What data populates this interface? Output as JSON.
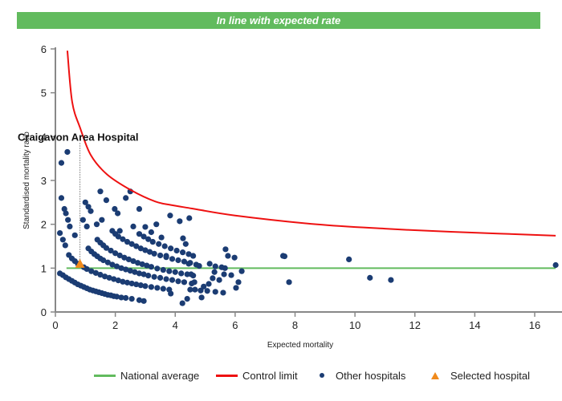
{
  "banner": {
    "text": "In line with expected rate",
    "color": "#62bb5e"
  },
  "chart_data": {
    "type": "scatter",
    "title": "In line with expected rate",
    "xlabel": "Expected mortality",
    "ylabel": "Standardised mortality ratio",
    "xlim": [
      0,
      17
    ],
    "ylim": [
      0,
      6
    ],
    "xticks": [
      0,
      2,
      4,
      6,
      8,
      10,
      12,
      14,
      16
    ],
    "yticks": [
      0,
      1,
      2,
      3,
      4,
      5,
      6
    ],
    "grid": false,
    "legend_position": "bottom",
    "colors": {
      "national_average": "#62bb5e",
      "control_limit": "#ee1111",
      "other_hospitals": "#1b3c73",
      "selected_hospital": "#f08a1c"
    },
    "national_average": {
      "name": "National average",
      "y": 1,
      "x_range": [
        0.37,
        16.7
      ]
    },
    "control_limit": {
      "name": "Control limit",
      "points": [
        [
          0.4,
          5.96
        ],
        [
          0.56,
          4.79
        ],
        [
          0.83,
          4.19
        ],
        [
          1.18,
          3.58
        ],
        [
          1.72,
          3.14
        ],
        [
          2.52,
          2.78
        ],
        [
          3.33,
          2.52
        ],
        [
          3.86,
          2.44
        ],
        [
          4.56,
          2.36
        ],
        [
          6.0,
          2.2
        ],
        [
          8.7,
          2.0
        ],
        [
          11.0,
          1.9
        ],
        [
          13.2,
          1.83
        ],
        [
          16.7,
          1.74
        ]
      ]
    },
    "selected_hospital": {
      "name": "Selected hospital",
      "label": "Craigavon Area Hospital",
      "x": 0.82,
      "y": 1.1
    },
    "other_hospitals": {
      "name": "Other hospitals",
      "points": [
        [
          0.2,
          3.4
        ],
        [
          0.4,
          3.65
        ],
        [
          0.2,
          2.6
        ],
        [
          0.3,
          2.35
        ],
        [
          0.35,
          2.25
        ],
        [
          0.42,
          2.1
        ],
        [
          0.48,
          1.95
        ],
        [
          0.15,
          1.8
        ],
        [
          0.25,
          1.65
        ],
        [
          0.33,
          1.52
        ],
        [
          0.65,
          1.75
        ],
        [
          0.92,
          2.1
        ],
        [
          1.05,
          1.95
        ],
        [
          1.0,
          2.5
        ],
        [
          1.1,
          2.4
        ],
        [
          1.18,
          2.3
        ],
        [
          1.5,
          2.75
        ],
        [
          1.7,
          2.55
        ],
        [
          1.55,
          2.1
        ],
        [
          1.38,
          2.0
        ],
        [
          1.98,
          2.35
        ],
        [
          2.08,
          2.25
        ],
        [
          2.35,
          2.6
        ],
        [
          2.5,
          2.75
        ],
        [
          2.8,
          2.35
        ],
        [
          2.15,
          1.85
        ],
        [
          2.6,
          1.95
        ],
        [
          3.0,
          1.94
        ],
        [
          3.37,
          2.0
        ],
        [
          3.83,
          2.2
        ],
        [
          4.15,
          2.07
        ],
        [
          4.47,
          2.14
        ],
        [
          0.15,
          0.88
        ],
        [
          0.25,
          0.84
        ],
        [
          0.35,
          0.79
        ],
        [
          0.45,
          0.75
        ],
        [
          0.55,
          0.71
        ],
        [
          0.65,
          0.67
        ],
        [
          0.75,
          0.63
        ],
        [
          0.85,
          0.6
        ],
        [
          0.95,
          0.57
        ],
        [
          1.05,
          0.54
        ],
        [
          1.15,
          0.51
        ],
        [
          1.25,
          0.49
        ],
        [
          1.35,
          0.47
        ],
        [
          1.45,
          0.45
        ],
        [
          1.55,
          0.43
        ],
        [
          1.65,
          0.41
        ],
        [
          1.75,
          0.39
        ],
        [
          1.85,
          0.38
        ],
        [
          1.95,
          0.36
        ],
        [
          2.05,
          0.35
        ],
        [
          2.2,
          0.33
        ],
        [
          2.35,
          0.32
        ],
        [
          2.55,
          0.3
        ],
        [
          2.8,
          0.27
        ],
        [
          2.95,
          0.25
        ],
        [
          0.45,
          1.3
        ],
        [
          0.55,
          1.22
        ],
        [
          0.65,
          1.16
        ],
        [
          0.75,
          1.1
        ],
        [
          0.95,
          1.02
        ],
        [
          1.05,
          0.98
        ],
        [
          1.2,
          0.93
        ],
        [
          1.35,
          0.89
        ],
        [
          1.5,
          0.85
        ],
        [
          1.65,
          0.81
        ],
        [
          1.8,
          0.78
        ],
        [
          1.95,
          0.75
        ],
        [
          2.1,
          0.72
        ],
        [
          2.25,
          0.69
        ],
        [
          2.4,
          0.67
        ],
        [
          2.55,
          0.65
        ],
        [
          2.7,
          0.63
        ],
        [
          2.85,
          0.61
        ],
        [
          3.0,
          0.59
        ],
        [
          3.2,
          0.57
        ],
        [
          3.4,
          0.55
        ],
        [
          3.6,
          0.53
        ],
        [
          3.8,
          0.51
        ],
        [
          1.1,
          1.45
        ],
        [
          1.2,
          1.38
        ],
        [
          1.3,
          1.32
        ],
        [
          1.4,
          1.27
        ],
        [
          1.5,
          1.22
        ],
        [
          1.6,
          1.18
        ],
        [
          1.75,
          1.13
        ],
        [
          1.9,
          1.08
        ],
        [
          2.05,
          1.04
        ],
        [
          2.2,
          1.0
        ],
        [
          2.35,
          0.97
        ],
        [
          2.5,
          0.94
        ],
        [
          2.65,
          0.91
        ],
        [
          2.8,
          0.88
        ],
        [
          2.95,
          0.86
        ],
        [
          3.1,
          0.83
        ],
        [
          3.3,
          0.8
        ],
        [
          3.5,
          0.78
        ],
        [
          3.7,
          0.75
        ],
        [
          3.9,
          0.73
        ],
        [
          4.1,
          0.7
        ],
        [
          4.3,
          0.68
        ],
        [
          4.55,
          0.65
        ],
        [
          1.4,
          1.65
        ],
        [
          1.5,
          1.58
        ],
        [
          1.6,
          1.52
        ],
        [
          1.7,
          1.46
        ],
        [
          1.85,
          1.4
        ],
        [
          2.0,
          1.34
        ],
        [
          2.15,
          1.29
        ],
        [
          2.3,
          1.24
        ],
        [
          2.45,
          1.2
        ],
        [
          2.6,
          1.16
        ],
        [
          2.75,
          1.12
        ],
        [
          2.9,
          1.09
        ],
        [
          3.05,
          1.06
        ],
        [
          3.2,
          1.03
        ],
        [
          3.4,
          0.99
        ],
        [
          3.6,
          0.96
        ],
        [
          3.8,
          0.93
        ],
        [
          4.0,
          0.91
        ],
        [
          4.2,
          0.88
        ],
        [
          4.4,
          0.86
        ],
        [
          4.6,
          0.83
        ],
        [
          1.9,
          1.85
        ],
        [
          2.0,
          1.78
        ],
        [
          2.1,
          1.72
        ],
        [
          2.25,
          1.66
        ],
        [
          2.4,
          1.6
        ],
        [
          2.55,
          1.55
        ],
        [
          2.7,
          1.5
        ],
        [
          2.85,
          1.45
        ],
        [
          3.0,
          1.41
        ],
        [
          3.15,
          1.37
        ],
        [
          3.3,
          1.33
        ],
        [
          3.5,
          1.29
        ],
        [
          3.7,
          1.25
        ],
        [
          3.9,
          1.21
        ],
        [
          4.1,
          1.18
        ],
        [
          4.3,
          1.15
        ],
        [
          4.5,
          1.12
        ],
        [
          4.7,
          1.08
        ],
        [
          2.8,
          1.78
        ],
        [
          2.95,
          1.72
        ],
        [
          3.1,
          1.66
        ],
        [
          3.25,
          1.6
        ],
        [
          3.45,
          1.55
        ],
        [
          3.65,
          1.5
        ],
        [
          3.85,
          1.45
        ],
        [
          4.05,
          1.4
        ],
        [
          4.25,
          1.36
        ],
        [
          4.45,
          1.32
        ],
        [
          4.6,
          1.28
        ],
        [
          3.2,
          1.82
        ],
        [
          3.54,
          1.7
        ],
        [
          4.26,
          1.68
        ],
        [
          3.7,
          1.28
        ],
        [
          4.35,
          1.55
        ],
        [
          4.45,
          1.1
        ],
        [
          4.53,
          0.86
        ],
        [
          4.64,
          0.68
        ],
        [
          4.5,
          0.51
        ],
        [
          4.66,
          0.51
        ],
        [
          4.85,
          0.49
        ],
        [
          5.07,
          0.48
        ],
        [
          5.34,
          0.46
        ],
        [
          5.6,
          0.44
        ],
        [
          4.88,
          0.33
        ],
        [
          4.24,
          0.2
        ],
        [
          4.4,
          0.3
        ],
        [
          3.85,
          0.42
        ],
        [
          5.15,
          1.1
        ],
        [
          5.34,
          1.04
        ],
        [
          5.55,
          1.02
        ],
        [
          5.66,
          1.0
        ],
        [
          5.31,
          0.91
        ],
        [
          5.63,
          0.86
        ],
        [
          5.87,
          0.84
        ],
        [
          5.25,
          0.77
        ],
        [
          5.47,
          0.73
        ],
        [
          6.11,
          0.68
        ],
        [
          5.12,
          0.64
        ],
        [
          6.03,
          0.55
        ],
        [
          5.68,
          1.43
        ],
        [
          5.76,
          1.28
        ],
        [
          5.98,
          1.24
        ],
        [
          6.22,
          0.93
        ],
        [
          4.8,
          1.05
        ],
        [
          4.95,
          0.58
        ],
        [
          7.6,
          1.28
        ],
        [
          7.65,
          1.27
        ],
        [
          7.8,
          0.68
        ],
        [
          9.8,
          1.2
        ],
        [
          10.5,
          0.78
        ],
        [
          11.2,
          0.73
        ],
        [
          16.7,
          1.07
        ]
      ]
    },
    "legend": [
      {
        "name": "National average",
        "symbol": "line"
      },
      {
        "name": "Control limit",
        "symbol": "line"
      },
      {
        "name": "Other hospitals",
        "symbol": "circle"
      },
      {
        "name": "Selected hospital",
        "symbol": "triangle"
      }
    ]
  }
}
